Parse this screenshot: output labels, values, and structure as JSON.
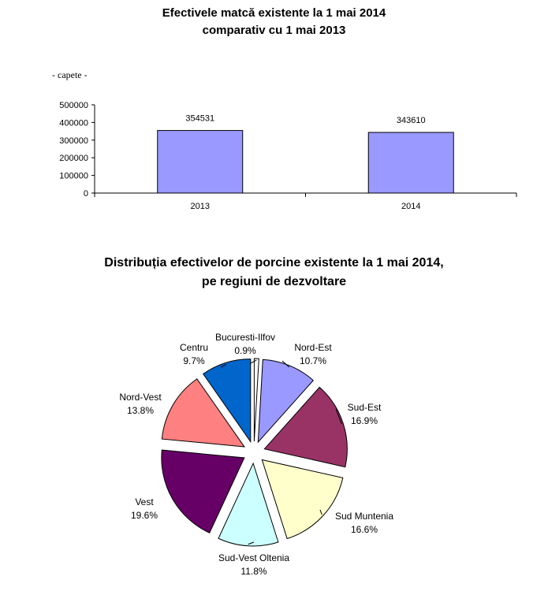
{
  "chart_data": [
    {
      "type": "bar",
      "title": [
        "Efectivele matcă existente la 1 mai 2014",
        "comparativ cu 1 mai 2013"
      ],
      "unit": "- capete -",
      "categories": [
        "2013",
        "2014"
      ],
      "values": [
        354531,
        343610
      ],
      "ylim": [
        0,
        500000
      ],
      "yticks": [
        "0",
        "100000",
        "200000",
        "300000",
        "400000",
        "500000"
      ],
      "bar_color": "#9999ff",
      "grid": false
    },
    {
      "type": "pie",
      "title": [
        "Distribuția efectivelor de porcine existente la 1 mai 2014,",
        "pe regiuni de dezvoltare"
      ],
      "slices": [
        {
          "name": "Bucuresti-Ilfov",
          "value": 0.9,
          "label": "0.9%",
          "color": "#ffffff"
        },
        {
          "name": "Nord-Est",
          "value": 10.7,
          "label": "10.7%",
          "color": "#9999ff"
        },
        {
          "name": "Sud-Est",
          "value": 16.9,
          "label": "16.9%",
          "color": "#993366"
        },
        {
          "name": "Sud Muntenia",
          "value": 16.6,
          "label": "16.6%",
          "color": "#ffffcc"
        },
        {
          "name": "Sud-Vest Oltenia",
          "value": 11.8,
          "label": "11.8%",
          "color": "#ccffff"
        },
        {
          "name": "Vest",
          "value": 19.6,
          "label": "19.6%",
          "color": "#660066"
        },
        {
          "name": "Nord-Vest",
          "value": 13.8,
          "label": "13.8%",
          "color": "#ff8080"
        },
        {
          "name": "Centru",
          "value": 9.7,
          "label": "9.7%",
          "color": "#0066cc"
        }
      ]
    }
  ]
}
